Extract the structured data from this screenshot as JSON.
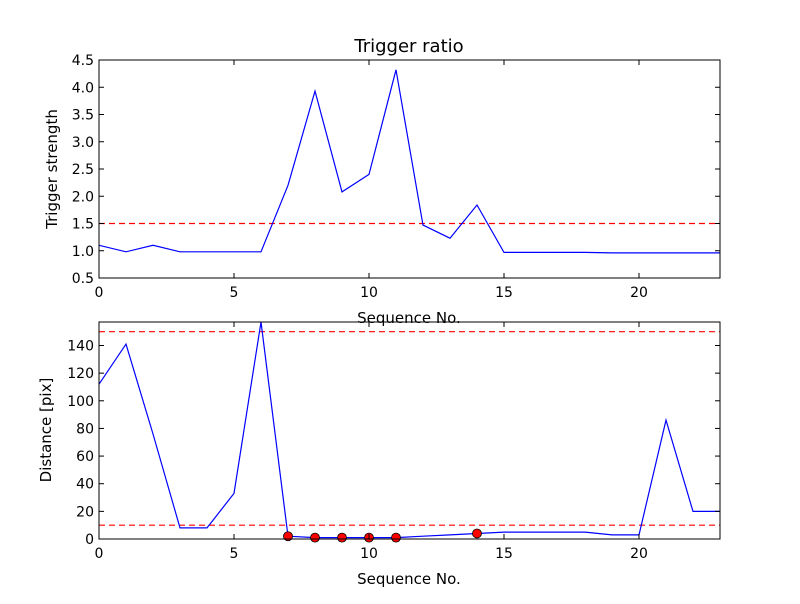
{
  "colors": {
    "series": "#0000ff",
    "threshold": "#ff0000",
    "marker": "#ff0000",
    "axis": "#000000",
    "background": "#ffffff"
  },
  "chart_data": [
    {
      "type": "line",
      "title": "Trigger ratio",
      "xlabel": "Sequence No.",
      "ylabel": "Trigger strength",
      "xlim": [
        0,
        23
      ],
      "ylim": [
        0.5,
        4.5
      ],
      "xticks": [
        0,
        5,
        10,
        15,
        20
      ],
      "xtick_labels": [
        "0",
        "5",
        "10",
        "15",
        "20"
      ],
      "yticks": [
        0.5,
        1.0,
        1.5,
        2.0,
        2.5,
        3.0,
        3.5,
        4.0,
        4.5
      ],
      "ytick_labels": [
        "0.5",
        "1.0",
        "1.5",
        "2.0",
        "2.5",
        "3.0",
        "3.5",
        "4.0",
        "4.5"
      ],
      "grid": false,
      "series": [
        {
          "x": [
            0,
            1,
            2,
            3,
            4,
            5,
            6,
            7,
            8,
            9,
            10,
            11,
            12,
            13,
            14,
            15,
            16,
            17,
            18,
            19,
            20,
            21,
            22,
            23
          ],
          "values": [
            1.1,
            0.98,
            1.1,
            0.98,
            0.98,
            0.98,
            0.98,
            2.2,
            3.93,
            2.08,
            2.4,
            4.32,
            1.47,
            1.23,
            1.84,
            0.97,
            0.97,
            0.97,
            0.97,
            0.96,
            0.96,
            0.96,
            0.96,
            0.96
          ],
          "style": "solid",
          "markers": []
        }
      ],
      "hlines": [
        {
          "y": 1.5,
          "style": "dashed"
        }
      ]
    },
    {
      "type": "line",
      "title": "",
      "xlabel": "Sequence No.",
      "ylabel": "Distance [pix]",
      "xlim": [
        0,
        23
      ],
      "ylim": [
        0,
        157
      ],
      "xticks": [
        0,
        5,
        10,
        15,
        20
      ],
      "xtick_labels": [
        "0",
        "5",
        "10",
        "15",
        "20"
      ],
      "yticks": [
        0,
        20,
        40,
        60,
        80,
        100,
        120,
        140
      ],
      "ytick_labels": [
        "0",
        "20",
        "40",
        "60",
        "80",
        "100",
        "120",
        "140"
      ],
      "grid": false,
      "series": [
        {
          "x": [
            0,
            1,
            2,
            3,
            4,
            5,
            6,
            7,
            8,
            9,
            10,
            11,
            12,
            13,
            14,
            15,
            16,
            17,
            18,
            19,
            20,
            21,
            22,
            23
          ],
          "values": [
            112,
            141,
            76,
            8,
            8,
            33,
            157,
            2,
            1,
            1,
            1,
            1,
            2,
            3,
            4,
            5,
            5,
            5,
            5,
            3,
            3,
            86,
            20,
            20
          ],
          "style": "solid",
          "markers": [
            7,
            8,
            9,
            10,
            11,
            14
          ]
        }
      ],
      "hlines": [
        {
          "y": 150,
          "style": "dashed"
        },
        {
          "y": 10,
          "style": "dashed"
        }
      ]
    }
  ]
}
